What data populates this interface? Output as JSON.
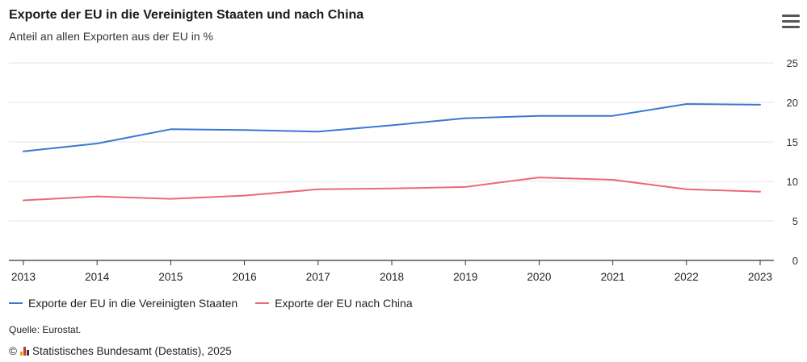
{
  "header": {
    "title": "Exporte der EU in die Vereinigten Staaten und nach China",
    "subtitle": "Anteil an allen Exporten aus der EU in %"
  },
  "menu": {
    "icon": "hamburger-menu-icon"
  },
  "footer": {
    "source": "Quelle: Eurostat.",
    "copyright_symbol": "©",
    "copyright": "Statistisches Bundesamt (Destatis), 2025"
  },
  "colors": {
    "usa": "#3a78d4",
    "china": "#e96a78",
    "grid": "#e6e6e6",
    "axis": "#333333"
  },
  "chart_data": {
    "type": "line",
    "title": "Exporte der EU in die Vereinigten Staaten und nach China",
    "subtitle": "Anteil an allen Exporten aus der EU in %",
    "x": [
      "2013",
      "2014",
      "2015",
      "2016",
      "2017",
      "2018",
      "2019",
      "2020",
      "2021",
      "2022",
      "2023"
    ],
    "ylim": [
      0,
      25
    ],
    "yticks": [
      0,
      5,
      10,
      15,
      20,
      25
    ],
    "grid": true,
    "legend_position": "bottom-left",
    "series": [
      {
        "name": "Exporte der EU in die Vereinigten Staaten",
        "color": "#3a78d4",
        "values": [
          13.8,
          14.8,
          16.6,
          16.5,
          16.3,
          17.1,
          18.0,
          18.3,
          18.3,
          19.8,
          19.7
        ]
      },
      {
        "name": "Exporte der EU nach China",
        "color": "#e96a78",
        "values": [
          7.6,
          8.1,
          7.8,
          8.2,
          9.0,
          9.1,
          9.3,
          10.5,
          10.2,
          9.0,
          8.7
        ]
      }
    ]
  }
}
